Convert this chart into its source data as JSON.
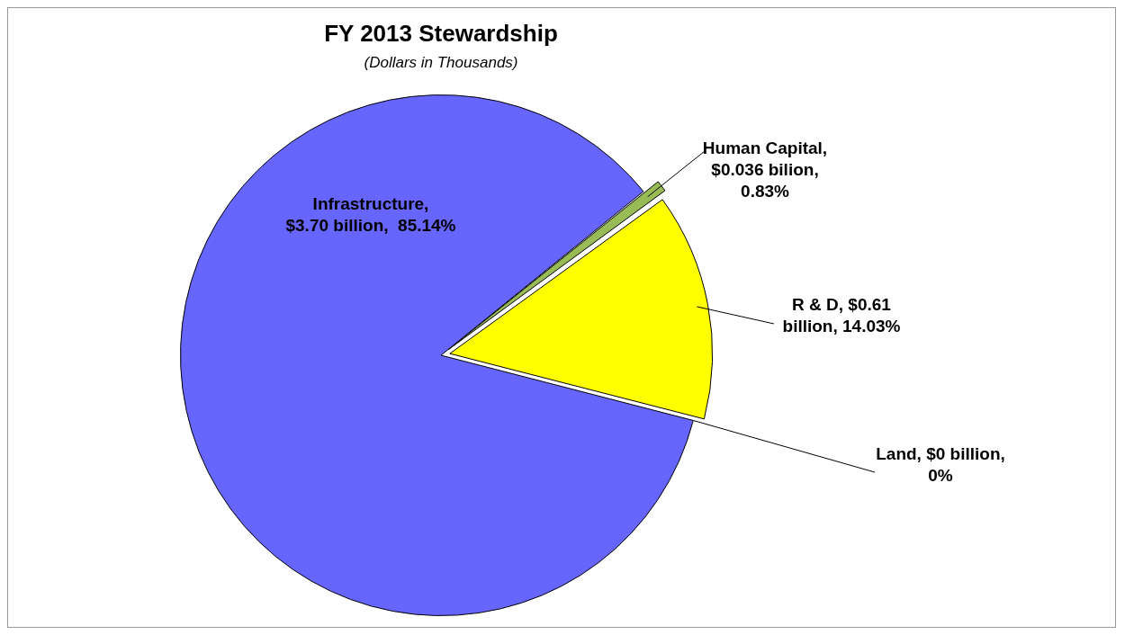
{
  "chart_data": {
    "type": "pie",
    "title": "FY 2013 Stewardship",
    "subtitle": "(Dollars in Thousands)",
    "categories": [
      "Human Capital",
      "R & D",
      "Land",
      "Infrastructure"
    ],
    "values": [
      0.83,
      14.03,
      0,
      85.14
    ],
    "value_labels": [
      ", $0.036 bilion, 0.83%",
      ", $0.61 billion, 14.03%",
      ", $0 billion, 0%",
      ", $3.70 billion,  85.14%"
    ],
    "colors": [
      "#99bb55",
      "#ffff00",
      "#ff9999",
      "#6666ff"
    ],
    "legend": false
  }
}
